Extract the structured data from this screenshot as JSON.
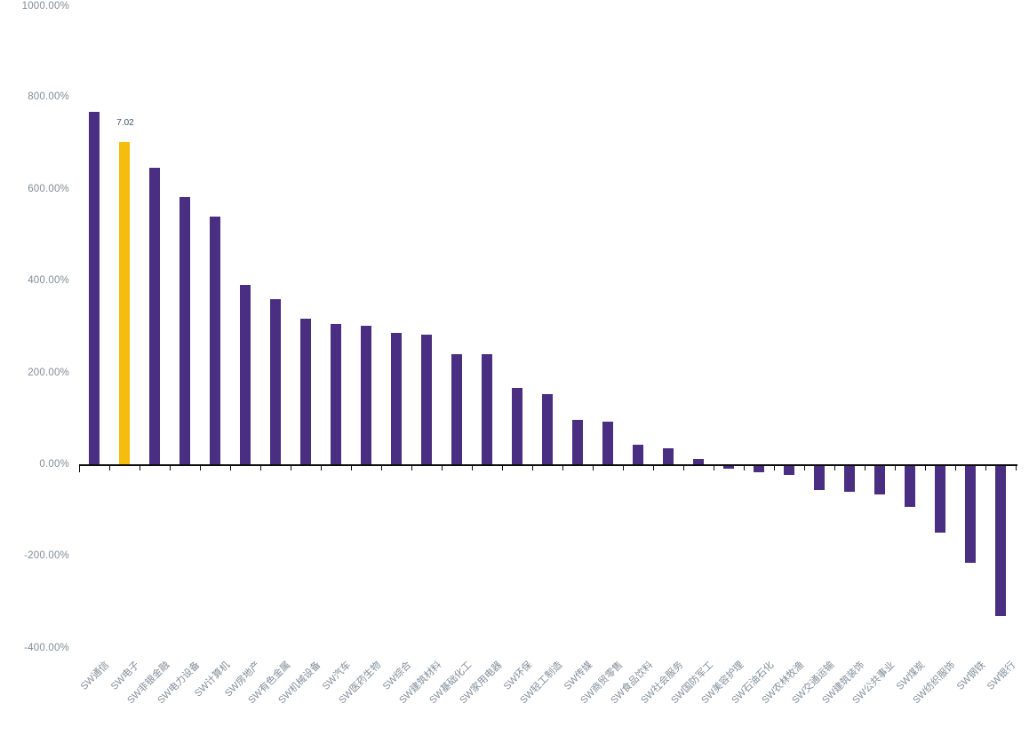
{
  "chart_data": {
    "type": "bar",
    "title": "",
    "legend": "none",
    "grid": "off",
    "unit": "%",
    "categories": [
      "SW通信",
      "SW电子",
      "SW非银金融",
      "SW电力设备",
      "SW计算机",
      "SW房地产",
      "SW有色金属",
      "SW机械设备",
      "SW汽车",
      "SW医药生物",
      "SW综合",
      "SW建筑材料",
      "SW基础化工",
      "SW家用电器",
      "SW环保",
      "SW轻工制造",
      "SW传媒",
      "SW商贸零售",
      "SW食品饮料",
      "SW社会服务",
      "SW国防军工",
      "SW美容护理",
      "SW石油石化",
      "SW农林牧渔",
      "SW交通运输",
      "SW建筑装饰",
      "SW公共事业",
      "SW煤炭",
      "SW纺织服饰",
      "SW钢铁",
      "SW银行"
    ],
    "values": [
      768,
      702,
      647,
      583,
      540,
      391,
      359,
      317,
      306,
      301,
      286,
      282,
      240,
      239,
      167,
      152,
      96,
      92,
      42,
      34,
      11,
      -6,
      -15,
      -21,
      -53,
      -56,
      -62,
      -90,
      -145,
      -211,
      -327
    ],
    "highlight": {
      "index": 1,
      "category": "SW电子",
      "data_label": "7.02",
      "color": "#f6bc0e"
    },
    "bar_color": "#4a2e82",
    "y_axis": {
      "min": -400,
      "max": 1000,
      "step": 200,
      "tick_labels": [
        "1000.00%",
        "800.00%",
        "600.00%",
        "400.00%",
        "200.00%",
        "0.00%",
        "-200.00%",
        "-400.00%"
      ]
    },
    "x_axis": {
      "label_rotation_deg": -45
    },
    "colors": {
      "axis_line": "#0d0d0d",
      "axis_tick_label": "#828d99",
      "data_label": "#44546a",
      "background": "#ffffff"
    }
  }
}
